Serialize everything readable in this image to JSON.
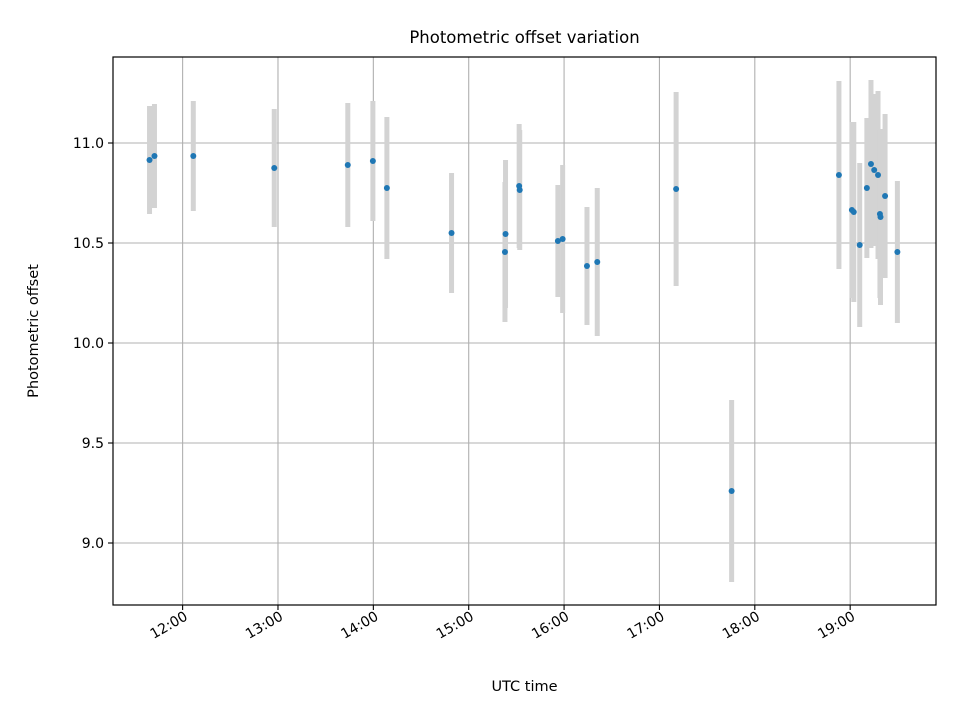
{
  "chart_data": {
    "type": "scatter",
    "title": "Photometric offset variation",
    "xlabel": "UTC time",
    "ylabel": "Photometric offset",
    "x_unit": "hours (UTC)",
    "xlim": [
      11.27,
      19.9
    ],
    "ylim": [
      8.69,
      11.43
    ],
    "x_ticks": [
      12,
      13,
      14,
      15,
      16,
      17,
      18,
      19
    ],
    "x_tick_labels": [
      "12:00",
      "13:00",
      "14:00",
      "15:00",
      "16:00",
      "17:00",
      "18:00",
      "19:00"
    ],
    "y_ticks": [
      9.0,
      9.5,
      10.0,
      10.5,
      11.0
    ],
    "y_tick_labels": [
      "9.0",
      "9.5",
      "10.0",
      "10.5",
      "11.0"
    ],
    "grid": true,
    "marker_color": "#1f77b4",
    "errorbar_color": "#d3d3d3",
    "points": [
      {
        "x": 11.653,
        "y": 10.915,
        "err": 0.27
      },
      {
        "x": 11.705,
        "y": 10.935,
        "err": 0.26
      },
      {
        "x": 12.112,
        "y": 10.935,
        "err": 0.275
      },
      {
        "x": 12.961,
        "y": 10.875,
        "err": 0.295
      },
      {
        "x": 13.732,
        "y": 10.89,
        "err": 0.31
      },
      {
        "x": 13.995,
        "y": 10.91,
        "err": 0.3
      },
      {
        "x": 14.142,
        "y": 10.775,
        "err": 0.355
      },
      {
        "x": 14.82,
        "y": 10.55,
        "err": 0.3
      },
      {
        "x": 15.38,
        "y": 10.455,
        "err": 0.35
      },
      {
        "x": 15.386,
        "y": 10.545,
        "err": 0.37
      },
      {
        "x": 15.529,
        "y": 10.785,
        "err": 0.31
      },
      {
        "x": 15.535,
        "y": 10.765,
        "err": 0.3
      },
      {
        "x": 15.935,
        "y": 10.51,
        "err": 0.28
      },
      {
        "x": 15.985,
        "y": 10.52,
        "err": 0.37
      },
      {
        "x": 16.24,
        "y": 10.385,
        "err": 0.295
      },
      {
        "x": 16.348,
        "y": 10.405,
        "err": 0.37
      },
      {
        "x": 17.175,
        "y": 10.77,
        "err": 0.485
      },
      {
        "x": 17.757,
        "y": 9.26,
        "err": 0.455
      },
      {
        "x": 18.882,
        "y": 10.84,
        "err": 0.47
      },
      {
        "x": 19.018,
        "y": 10.665,
        "err": 0.44
      },
      {
        "x": 19.038,
        "y": 10.655,
        "err": 0.45
      },
      {
        "x": 19.1,
        "y": 10.49,
        "err": 0.41
      },
      {
        "x": 19.175,
        "y": 10.775,
        "err": 0.35
      },
      {
        "x": 19.218,
        "y": 10.895,
        "err": 0.42
      },
      {
        "x": 19.252,
        "y": 10.865,
        "err": 0.38
      },
      {
        "x": 19.292,
        "y": 10.84,
        "err": 0.42
      },
      {
        "x": 19.312,
        "y": 10.645,
        "err": 0.42
      },
      {
        "x": 19.318,
        "y": 10.63,
        "err": 0.44
      },
      {
        "x": 19.366,
        "y": 10.735,
        "err": 0.41
      },
      {
        "x": 19.495,
        "y": 10.455,
        "err": 0.355
      }
    ]
  }
}
